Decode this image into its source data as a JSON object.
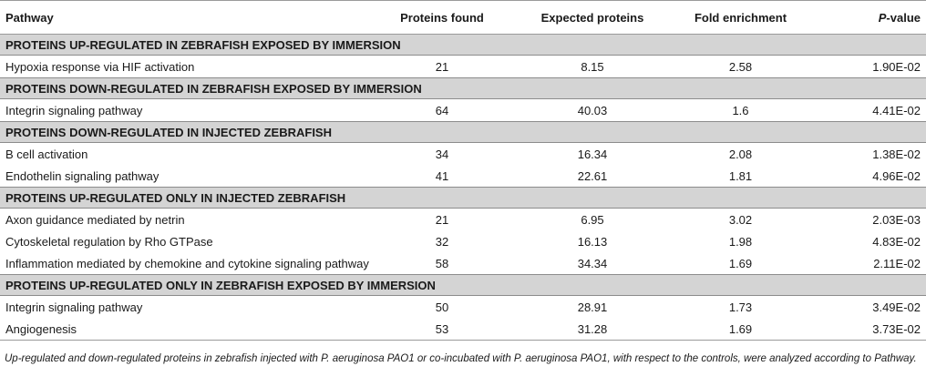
{
  "table": {
    "headers": {
      "pathway": "Pathway",
      "found": "Proteins found",
      "expected": "Expected proteins",
      "fold": "Fold enrichment",
      "p_prefix": "P",
      "p_suffix": "-value"
    },
    "sections": [
      {
        "title": "PROTEINS UP-REGULATED IN ZEBRAFISH EXPOSED BY IMMERSION",
        "rows": [
          {
            "pathway": "Hypoxia response via HIF activation",
            "found": "21",
            "expected": "8.15",
            "fold": "2.58",
            "p": "1.90E-02"
          }
        ]
      },
      {
        "title": "PROTEINS DOWN-REGULATED IN ZEBRAFISH EXPOSED BY IMMERSION",
        "rows": [
          {
            "pathway": "Integrin signaling pathway",
            "found": "64",
            "expected": "40.03",
            "fold": "1.6",
            "p": "4.41E-02"
          }
        ]
      },
      {
        "title": "PROTEINS DOWN-REGULATED IN INJECTED ZEBRAFISH",
        "rows": [
          {
            "pathway": "B cell activation",
            "found": "34",
            "expected": "16.34",
            "fold": "2.08",
            "p": "1.38E-02"
          },
          {
            "pathway": "Endothelin signaling pathway",
            "found": "41",
            "expected": "22.61",
            "fold": "1.81",
            "p": "4.96E-02"
          }
        ]
      },
      {
        "title": "PROTEINS UP-REGULATED ONLY IN INJECTED ZEBRAFISH",
        "rows": [
          {
            "pathway": "Axon guidance mediated by netrin",
            "found": "21",
            "expected": "6.95",
            "fold": "3.02",
            "p": "2.03E-03"
          },
          {
            "pathway": "Cytoskeletal regulation by Rho GTPase",
            "found": "32",
            "expected": "16.13",
            "fold": "1.98",
            "p": "4.83E-02"
          },
          {
            "pathway": "Inflammation mediated by chemokine and cytokine signaling pathway",
            "found": "58",
            "expected": "34.34",
            "fold": "1.69",
            "p": "2.11E-02"
          }
        ]
      },
      {
        "title": "PROTEINS UP-REGULATED ONLY IN ZEBRAFISH EXPOSED BY IMMERSION",
        "rows": [
          {
            "pathway": "Integrin signaling pathway",
            "found": "50",
            "expected": "28.91",
            "fold": "1.73",
            "p": "3.49E-02"
          },
          {
            "pathway": "Angiogenesis",
            "found": "53",
            "expected": "31.28",
            "fold": "1.69",
            "p": "3.73E-02"
          }
        ]
      }
    ]
  },
  "caption": "Up-regulated and down-regulated proteins in zebrafish injected with P. aeruginosa PAO1 or co-incubated with P. aeruginosa PAO1, with respect to the controls, were analyzed according to Pathway."
}
